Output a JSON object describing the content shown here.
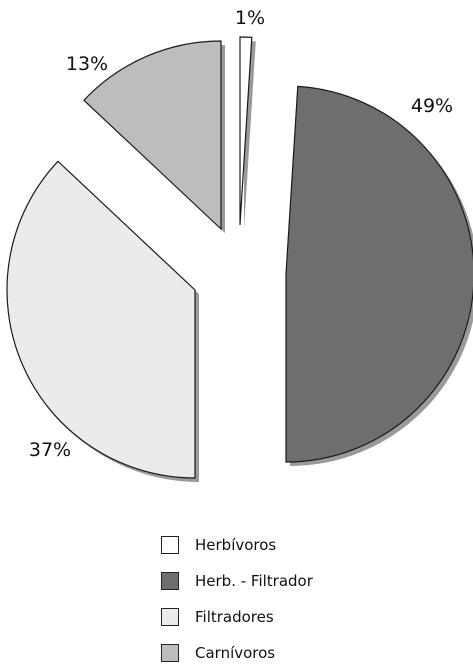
{
  "chart_data": {
    "type": "pie",
    "title": "",
    "slices": [
      {
        "label": "Herbívoros",
        "value": 1,
        "value_label": "1%",
        "color": "#ffffff"
      },
      {
        "label": "Herb. - Filtrador",
        "value": 49,
        "value_label": "49%",
        "color": "#6e6e6e"
      },
      {
        "label": "Filtradores",
        "value": 37,
        "value_label": "37%",
        "color": "#ebebeb"
      },
      {
        "label": "Carnívoros",
        "value": 13,
        "value_label": "13%",
        "color": "#bdbdbd"
      }
    ],
    "exploded": true,
    "shadow": true,
    "legend_position": "bottom"
  }
}
